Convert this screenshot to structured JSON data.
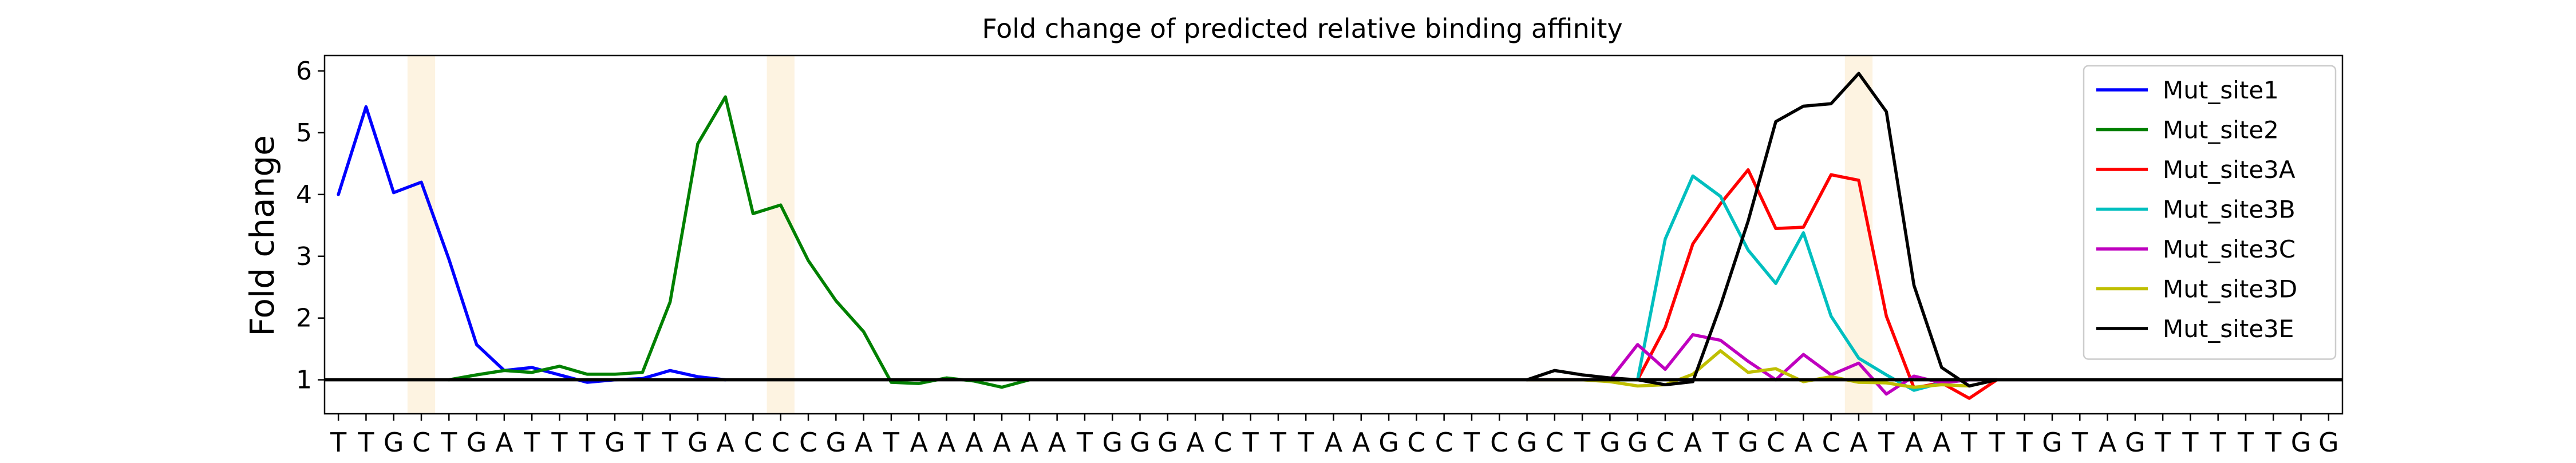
{
  "chart_data": {
    "type": "line",
    "title": "Fold change of predicted relative binding affinity",
    "ylabel": "Fold change",
    "xlabel": "",
    "ylim": [
      0.45,
      6.25
    ],
    "yticks": [
      1,
      2,
      3,
      4,
      5,
      6
    ],
    "x_tick_labels": [
      "T",
      "T",
      "G",
      "C",
      "T",
      "G",
      "A",
      "T",
      "T",
      "T",
      "G",
      "T",
      "T",
      "G",
      "A",
      "C",
      "C",
      "C",
      "G",
      "A",
      "T",
      "A",
      "A",
      "A",
      "A",
      "A",
      "A",
      "T",
      "G",
      "G",
      "G",
      "A",
      "C",
      "T",
      "T",
      "T",
      "A",
      "A",
      "G",
      "C",
      "C",
      "T",
      "C",
      "G",
      "C",
      "T",
      "G",
      "G",
      "C",
      "A",
      "T",
      "G",
      "C",
      "A",
      "C",
      "A",
      "T",
      "A",
      "A",
      "T",
      "T",
      "T",
      "G",
      "T",
      "A",
      "G",
      "T",
      "T",
      "T",
      "T",
      "T",
      "G",
      "G"
    ],
    "highlighted_positions": [
      3,
      16,
      55
    ],
    "highlight_color": "#fdf3e1",
    "baseline": 1,
    "legend_position": "top-right",
    "grid": false,
    "series": [
      {
        "name": "Mut_site1",
        "color": "#0000ff",
        "x": [
          0,
          1,
          2,
          3,
          4,
          5,
          6,
          7,
          8,
          9,
          10,
          11,
          12,
          13,
          14
        ],
        "values": [
          4.0,
          5.42,
          4.03,
          4.2,
          2.95,
          1.57,
          1.15,
          1.2,
          1.08,
          0.96,
          1.0,
          1.02,
          1.15,
          1.05,
          1.0
        ]
      },
      {
        "name": "Mut_site2",
        "color": "#008000",
        "x": [
          4,
          5,
          6,
          7,
          8,
          9,
          10,
          11,
          12,
          13,
          14,
          15,
          16,
          17,
          18,
          19,
          20,
          21,
          22,
          23,
          24,
          25
        ],
        "values": [
          1.0,
          1.08,
          1.15,
          1.12,
          1.22,
          1.09,
          1.09,
          1.12,
          2.26,
          4.82,
          5.58,
          3.69,
          3.83,
          2.93,
          2.28,
          1.78,
          0.96,
          0.94,
          1.03,
          0.98,
          0.88,
          1.0
        ]
      },
      {
        "name": "Mut_site3A",
        "color": "#ff0000",
        "x": [
          43,
          44,
          45,
          46,
          47,
          48,
          49,
          50,
          51,
          52,
          53,
          54,
          55,
          56,
          57,
          58,
          59,
          60
        ],
        "values": [
          1.0,
          1.0,
          1.0,
          1.0,
          1.0,
          1.85,
          3.2,
          3.85,
          4.4,
          3.45,
          3.47,
          4.32,
          4.23,
          2.03,
          0.87,
          0.95,
          0.7,
          1.0
        ]
      },
      {
        "name": "Mut_site3B",
        "color": "#00bfbf",
        "x": [
          43,
          44,
          45,
          46,
          47,
          48,
          49,
          50,
          51,
          52,
          53,
          54,
          55,
          56,
          57,
          58,
          59,
          60
        ],
        "values": [
          1.0,
          1.0,
          1.0,
          1.0,
          1.0,
          3.28,
          4.3,
          3.97,
          3.1,
          2.56,
          3.38,
          2.03,
          1.35,
          1.08,
          0.83,
          0.95,
          1.0,
          1.0
        ]
      },
      {
        "name": "Mut_site3C",
        "color": "#bf00bf",
        "x": [
          43,
          44,
          45,
          46,
          47,
          48,
          49,
          50,
          51,
          52,
          53,
          54,
          55,
          56,
          57,
          58,
          59,
          60
        ],
        "values": [
          1.0,
          1.0,
          1.0,
          1.0,
          1.57,
          1.17,
          1.73,
          1.64,
          1.3,
          1.0,
          1.41,
          1.08,
          1.27,
          0.77,
          1.06,
          0.95,
          1.0,
          1.0
        ]
      },
      {
        "name": "Mut_site3D",
        "color": "#bfbf00",
        "x": [
          43,
          44,
          45,
          46,
          47,
          48,
          49,
          50,
          51,
          52,
          53,
          54,
          55,
          56,
          57,
          58,
          59,
          60
        ],
        "values": [
          1.0,
          1.0,
          1.0,
          0.97,
          0.9,
          0.92,
          1.09,
          1.47,
          1.12,
          1.18,
          0.97,
          1.05,
          0.96,
          0.95,
          0.88,
          0.92,
          0.9,
          1.0
        ]
      },
      {
        "name": "Mut_site3E",
        "color": "#000000",
        "x": [
          43,
          44,
          45,
          46,
          47,
          48,
          49,
          50,
          51,
          52,
          53,
          54,
          55,
          56,
          57,
          58,
          59,
          60
        ],
        "values": [
          1.0,
          1.15,
          1.08,
          1.03,
          1.0,
          0.92,
          0.97,
          2.2,
          3.57,
          5.18,
          5.43,
          5.47,
          5.96,
          5.34,
          2.53,
          1.2,
          0.9,
          1.0
        ]
      }
    ]
  }
}
